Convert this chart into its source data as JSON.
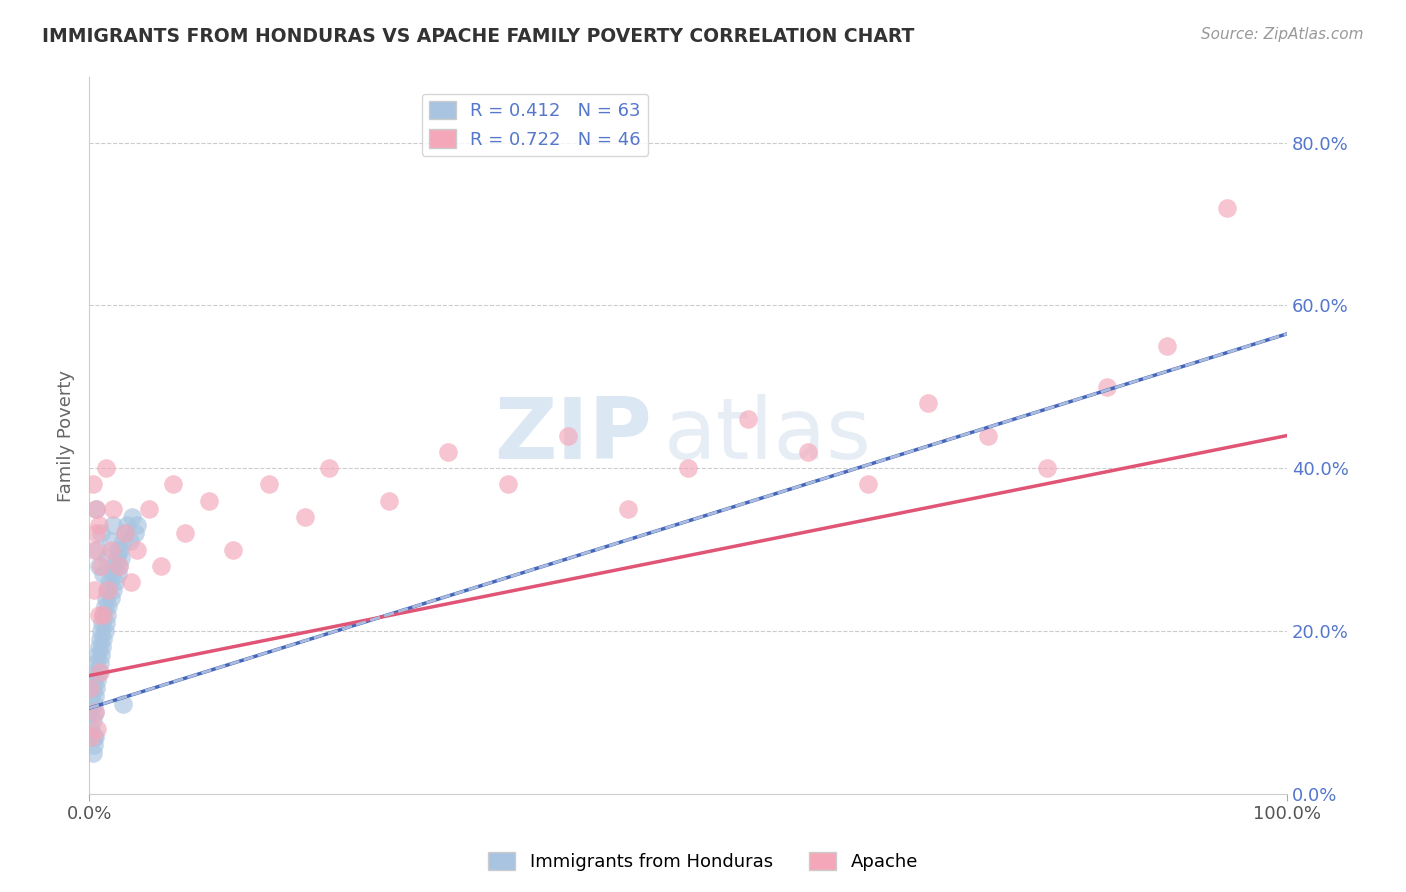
{
  "title": "IMMIGRANTS FROM HONDURAS VS APACHE FAMILY POVERTY CORRELATION CHART",
  "source_text": "Source: ZipAtlas.com",
  "ylabel": "Family Poverty",
  "legend_label_1": "Immigrants from Honduras",
  "legend_label_2": "Apache",
  "R1": 0.412,
  "N1": 63,
  "R2": 0.722,
  "N2": 46,
  "color1": "#a8c4e0",
  "color2": "#f4a7b9",
  "trendline1_color": "#4466bb",
  "trendline2_color": "#e05575",
  "trendline1_dashed_color": "#aabbdd",
  "watermark_zip": "ZIP",
  "watermark_atlas": "atlas",
  "ytick_color": "#5577cc",
  "title_color": "#333333",
  "source_color": "#999999",
  "xlim": [
    0.0,
    1.0
  ],
  "ylim": [
    0.0,
    0.88
  ],
  "yticks": [
    0.0,
    0.2,
    0.4,
    0.6,
    0.8
  ],
  "ytick_labels": [
    "0.0%",
    "20.0%",
    "40.0%",
    "60.0%",
    "80.0%"
  ],
  "honduras_x": [
    0.001,
    0.002,
    0.002,
    0.003,
    0.003,
    0.004,
    0.004,
    0.004,
    0.005,
    0.005,
    0.005,
    0.006,
    0.006,
    0.007,
    0.007,
    0.008,
    0.008,
    0.009,
    0.009,
    0.01,
    0.01,
    0.011,
    0.011,
    0.012,
    0.012,
    0.013,
    0.013,
    0.014,
    0.014,
    0.015,
    0.015,
    0.016,
    0.017,
    0.018,
    0.019,
    0.02,
    0.021,
    0.022,
    0.023,
    0.024,
    0.025,
    0.026,
    0.027,
    0.028,
    0.03,
    0.032,
    0.034,
    0.036,
    0.038,
    0.04,
    0.003,
    0.004,
    0.005,
    0.006,
    0.007,
    0.008,
    0.01,
    0.012,
    0.015,
    0.018,
    0.02,
    0.024,
    0.028
  ],
  "honduras_y": [
    0.1,
    0.08,
    0.12,
    0.09,
    0.13,
    0.11,
    0.14,
    0.07,
    0.12,
    0.15,
    0.1,
    0.13,
    0.16,
    0.14,
    0.17,
    0.15,
    0.18,
    0.16,
    0.19,
    0.17,
    0.2,
    0.18,
    0.21,
    0.19,
    0.22,
    0.2,
    0.23,
    0.21,
    0.24,
    0.22,
    0.25,
    0.23,
    0.26,
    0.24,
    0.27,
    0.25,
    0.28,
    0.26,
    0.29,
    0.27,
    0.28,
    0.3,
    0.29,
    0.31,
    0.32,
    0.33,
    0.31,
    0.34,
    0.32,
    0.33,
    0.05,
    0.06,
    0.07,
    0.35,
    0.3,
    0.28,
    0.32,
    0.27,
    0.29,
    0.31,
    0.33,
    0.3,
    0.11
  ],
  "apache_x": [
    0.001,
    0.002,
    0.003,
    0.004,
    0.005,
    0.006,
    0.007,
    0.008,
    0.009,
    0.01,
    0.012,
    0.014,
    0.016,
    0.018,
    0.02,
    0.025,
    0.03,
    0.035,
    0.04,
    0.05,
    0.06,
    0.07,
    0.08,
    0.1,
    0.12,
    0.15,
    0.18,
    0.2,
    0.25,
    0.3,
    0.35,
    0.4,
    0.45,
    0.5,
    0.55,
    0.6,
    0.65,
    0.7,
    0.75,
    0.8,
    0.85,
    0.9,
    0.95,
    0.004,
    0.006,
    0.008
  ],
  "apache_y": [
    0.13,
    0.07,
    0.38,
    0.3,
    0.1,
    0.35,
    0.08,
    0.33,
    0.15,
    0.28,
    0.22,
    0.4,
    0.25,
    0.3,
    0.35,
    0.28,
    0.32,
    0.26,
    0.3,
    0.35,
    0.28,
    0.38,
    0.32,
    0.36,
    0.3,
    0.38,
    0.34,
    0.4,
    0.36,
    0.42,
    0.38,
    0.44,
    0.35,
    0.4,
    0.46,
    0.42,
    0.38,
    0.48,
    0.44,
    0.4,
    0.5,
    0.55,
    0.72,
    0.25,
    0.32,
    0.22
  ],
  "trendline1_x0": 0.0,
  "trendline1_y0": 0.105,
  "trendline1_x1": 1.0,
  "trendline1_y1": 0.565,
  "trendline2_x0": 0.0,
  "trendline2_y0": 0.145,
  "trendline2_x1": 1.0,
  "trendline2_y1": 0.44
}
